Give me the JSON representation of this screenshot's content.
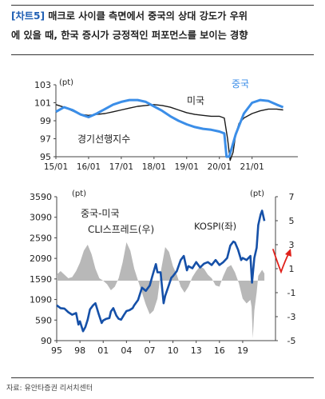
{
  "header": {
    "tag": "[차트5]",
    "title_line1": "매크로 사이클 측면에서 중국의 상대 강도가 우위",
    "title_line2": "에 있을 때, 한국 증시가 긍정적인 퍼포먼스를 보이는 경향"
  },
  "footer": {
    "source": "자료: 유안타증권 리서치센터"
  },
  "colors": {
    "blue": "#3b8ee8",
    "darkblue": "#1550a8",
    "black": "#1a1a1a",
    "gray": "#b8b8b8",
    "red": "#e0201a"
  },
  "chart_data": [
    {
      "type": "line",
      "unit_label": "(pt)",
      "x_ticks": [
        "15/01",
        "16/01",
        "17/01",
        "18/01",
        "19/01",
        "20/01",
        "21/01"
      ],
      "ylim": [
        95,
        103
      ],
      "y_ticks": [
        95,
        97,
        99,
        101,
        103
      ],
      "annotations": {
        "us_label": "미국",
        "china_label": "중국",
        "cli_label": "경기선행지수"
      },
      "series": [
        {
          "name": "미국",
          "x": [
            2015.0,
            2015.25,
            2015.5,
            2015.75,
            2016.0,
            2016.25,
            2016.5,
            2016.75,
            2017.0,
            2017.25,
            2017.5,
            2017.75,
            2018.0,
            2018.25,
            2018.5,
            2018.75,
            2019.0,
            2019.25,
            2019.5,
            2019.75,
            2020.0,
            2020.15,
            2020.25,
            2020.33,
            2020.42,
            2020.5,
            2020.6,
            2020.75,
            2021.0,
            2021.25,
            2021.5,
            2021.75,
            2021.95
          ],
          "values": [
            100.8,
            100.5,
            100.1,
            99.7,
            99.6,
            99.7,
            99.8,
            100.0,
            100.2,
            100.4,
            100.6,
            100.7,
            100.8,
            100.7,
            100.5,
            100.2,
            99.9,
            99.7,
            99.6,
            99.5,
            99.5,
            99.3,
            97.0,
            94.5,
            95.5,
            97.5,
            98.7,
            99.3,
            99.8,
            100.1,
            100.3,
            100.3,
            100.2
          ]
        },
        {
          "name": "중국",
          "x": [
            2015.0,
            2015.25,
            2015.5,
            2015.75,
            2016.0,
            2016.25,
            2016.5,
            2016.75,
            2017.0,
            2017.25,
            2017.5,
            2017.75,
            2018.0,
            2018.25,
            2018.5,
            2018.75,
            2019.0,
            2019.25,
            2019.5,
            2019.75,
            2020.0,
            2020.15,
            2020.22,
            2020.3,
            2020.5,
            2020.75,
            2021.0,
            2021.25,
            2021.5,
            2021.75,
            2021.95
          ],
          "values": [
            100.0,
            100.5,
            100.2,
            99.7,
            99.4,
            99.8,
            100.3,
            100.8,
            101.1,
            101.3,
            101.3,
            101.1,
            100.6,
            100.1,
            99.5,
            99.0,
            98.6,
            98.3,
            98.1,
            98.0,
            97.8,
            97.6,
            95.0,
            95.0,
            97.5,
            99.8,
            101.0,
            101.3,
            101.2,
            100.8,
            100.5
          ]
        }
      ]
    },
    {
      "type": "line",
      "x_ticks": [
        "95",
        "98",
        "01",
        "04",
        "07",
        "10",
        "13",
        "16",
        "19"
      ],
      "x_tick_years": [
        1995,
        1998,
        2001,
        2004,
        2007,
        2010,
        2013,
        2016,
        2019
      ],
      "left_axis": {
        "unit_label": "(pt)",
        "ylim": [
          90,
          3590
        ],
        "ticks": [
          90,
          590,
          1090,
          1590,
          2090,
          2590,
          3090,
          3590
        ]
      },
      "right_axis": {
        "unit_label": "(pt)",
        "ylim": [
          -5,
          7
        ],
        "ticks": [
          -5,
          -3,
          -1,
          1,
          3,
          5,
          7
        ]
      },
      "annotations": {
        "spread_label_line1": "중국-미국",
        "spread_label_line2": "CLI스프레드(우)",
        "kospi_label": "KOSPI(좌)"
      },
      "series": [
        {
          "name": "KOSPI(좌)",
          "axis": "left",
          "x": [
            1995.0,
            1995.5,
            1996.0,
            1996.5,
            1997.0,
            1997.5,
            1997.8,
            1998.0,
            1998.4,
            1998.7,
            1999.0,
            1999.3,
            1999.7,
            2000.0,
            2000.4,
            2000.8,
            2001.0,
            2001.4,
            2001.8,
            2002.0,
            2002.3,
            2002.7,
            2003.0,
            2003.3,
            2003.7,
            2004.0,
            2004.4,
            2004.8,
            2005.0,
            2005.5,
            2006.0,
            2006.5,
            2007.0,
            2007.4,
            2007.8,
            2008.0,
            2008.4,
            2008.8,
            2009.0,
            2009.4,
            2009.8,
            2010.0,
            2010.5,
            2011.0,
            2011.4,
            2011.8,
            2012.0,
            2012.5,
            2013.0,
            2013.5,
            2014.0,
            2014.5,
            2015.0,
            2015.5,
            2016.0,
            2016.5,
            2017.0,
            2017.4,
            2017.8,
            2018.0,
            2018.4,
            2018.8,
            2019.0,
            2019.5,
            2020.0,
            2020.2,
            2020.5,
            2020.8,
            2021.0,
            2021.3,
            2021.5,
            2021.8
          ],
          "values": [
            950,
            880,
            870,
            780,
            720,
            760,
            480,
            560,
            320,
            420,
            600,
            850,
            950,
            1000,
            750,
            520,
            580,
            620,
            640,
            800,
            880,
            700,
            620,
            600,
            720,
            810,
            830,
            880,
            950,
            1080,
            1380,
            1300,
            1430,
            1700,
            1950,
            1750,
            1750,
            1000,
            1180,
            1400,
            1620,
            1660,
            1780,
            2050,
            2150,
            1800,
            1900,
            1850,
            2000,
            1870,
            1960,
            2000,
            1930,
            2050,
            1930,
            2000,
            2100,
            2400,
            2500,
            2480,
            2300,
            2050,
            2100,
            2050,
            2150,
            1500,
            2100,
            2350,
            2900,
            3150,
            3250,
            3000
          ]
        },
        {
          "name": "중국-미국 CLI스프레드(우)",
          "axis": "right",
          "x": [
            1995.0,
            1995.5,
            1996.0,
            1996.5,
            1997.0,
            1997.5,
            1998.0,
            1998.5,
            1999.0,
            1999.5,
            2000.0,
            2000.5,
            2001.0,
            2001.5,
            2002.0,
            2002.5,
            2003.0,
            2003.5,
            2004.0,
            2004.5,
            2005.0,
            2005.5,
            2006.0,
            2006.5,
            2007.0,
            2007.5,
            2008.0,
            2008.5,
            2009.0,
            2009.5,
            2010.0,
            2010.5,
            2011.0,
            2011.5,
            2012.0,
            2012.5,
            2013.0,
            2013.5,
            2014.0,
            2014.5,
            2015.0,
            2015.5,
            2016.0,
            2016.5,
            2017.0,
            2017.5,
            2018.0,
            2018.5,
            2019.0,
            2019.5,
            2020.0,
            2020.15,
            2020.3,
            2020.5,
            2020.8,
            2021.0,
            2021.5,
            2021.8
          ],
          "values": [
            0.5,
            0.8,
            0.5,
            0.2,
            0.3,
            0.8,
            1.5,
            2.5,
            3.0,
            2.2,
            1.0,
            0.2,
            0.0,
            -0.3,
            -0.8,
            -0.5,
            0.2,
            1.5,
            3.2,
            2.5,
            1.0,
            0.0,
            -1.0,
            -2.0,
            -2.8,
            -2.5,
            -1.5,
            1.0,
            2.8,
            2.4,
            1.2,
            0.5,
            -0.5,
            -1.0,
            -0.5,
            0.3,
            0.8,
            1.2,
            1.0,
            0.5,
            0.2,
            -0.4,
            -0.5,
            0.4,
            1.1,
            1.3,
            0.7,
            -0.2,
            -1.5,
            -1.9,
            -1.6,
            -2.2,
            -4.8,
            -2.5,
            -1.0,
            0.4,
            0.9,
            0.6
          ]
        }
      ]
    }
  ]
}
